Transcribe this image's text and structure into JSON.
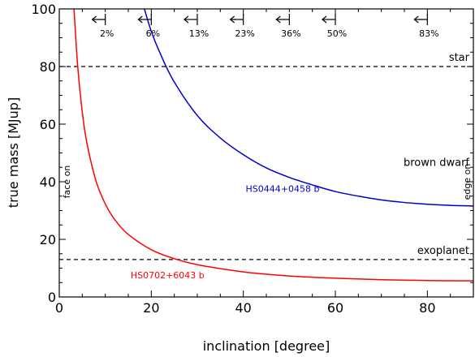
{
  "chart_data": {
    "type": "line",
    "title": "",
    "xlabel": "inclination [degree]",
    "ylabel": "true mass [MJup]",
    "xlim": [
      0,
      90
    ],
    "ylim": [
      0,
      100
    ],
    "xticks": [
      0,
      20,
      40,
      60,
      80
    ],
    "yticks": [
      0,
      20,
      40,
      60,
      80,
      100
    ],
    "series": [
      {
        "name": "HS0444+0458 b",
        "color": "#0000cc",
        "x": [
          18.5,
          20,
          22,
          25,
          30,
          35,
          40,
          45,
          50,
          55,
          60,
          65,
          70,
          75,
          80,
          85,
          90
        ],
        "y": [
          100,
          92.2,
          84.3,
          74.6,
          63.0,
          55.2,
          49.4,
          44.8,
          41.5,
          38.9,
          36.6,
          35.0,
          33.7,
          32.8,
          32.2,
          31.8,
          31.6
        ]
      },
      {
        "name": "HS0702+6043 b",
        "color": "#ff0000",
        "x": [
          3.2,
          4,
          5,
          6,
          8,
          10,
          12,
          15,
          20,
          25,
          30,
          40,
          50,
          60,
          70,
          80,
          90
        ],
        "y": [
          100,
          80.2,
          64.2,
          53.5,
          40.2,
          32.3,
          27.0,
          21.7,
          16.4,
          13.3,
          11.2,
          8.7,
          7.3,
          6.5,
          6.0,
          5.7,
          5.6
        ]
      }
    ],
    "reference_lines": [
      {
        "label": "star",
        "y": 80
      },
      {
        "label": "exoplanet",
        "y": 13
      }
    ],
    "region_labels": {
      "brown_dwarf": "brown dwarf",
      "face_on": "face on",
      "edge_on": "edge on"
    },
    "probability_markers": [
      {
        "x": 10,
        "label": "2%"
      },
      {
        "x": 20,
        "label": "6%"
      },
      {
        "x": 30,
        "label": "13%"
      },
      {
        "x": 40,
        "label": "23%"
      },
      {
        "x": 50,
        "label": "36%"
      },
      {
        "x": 60,
        "label": "50%"
      },
      {
        "x": 80,
        "label": "83%"
      }
    ]
  }
}
